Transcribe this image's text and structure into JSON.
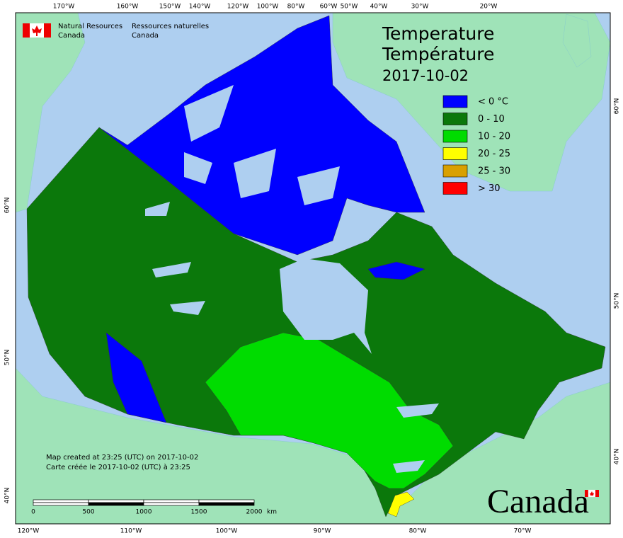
{
  "header": {
    "department_en": [
      "Natural Resources",
      "Canada"
    ],
    "department_fr": [
      "Ressources naturelles",
      "Canada"
    ]
  },
  "title": {
    "line1": "Temperature",
    "line2": "Température",
    "date": "2017-10-02"
  },
  "legend": [
    {
      "label": "< 0 °C",
      "color": "#0000ff"
    },
    {
      "label": "0 - 10",
      "color": "#0b780b"
    },
    {
      "label": "10 - 20",
      "color": "#00dc00"
    },
    {
      "label": "20 - 25",
      "color": "#ffff00"
    },
    {
      "label": "25 - 30",
      "color": "#d9a000"
    },
    {
      "label": "> 30",
      "color": "#ff0000"
    }
  ],
  "footer": {
    "created_en": "Map created at 23:25 (UTC) on 2017-10-02",
    "created_fr": "Carte créée le 2017-10-02 (UTC) à 23:25"
  },
  "scale_bar": {
    "labels": [
      "0",
      "500",
      "1000",
      "1500",
      "2000"
    ],
    "unit": "km"
  },
  "graticule": {
    "top": [
      "170°W",
      "160°W",
      "150°W",
      "140°W",
      "120°W",
      "100°W",
      "80°W",
      "60°W",
      "50°W",
      "40°W",
      "30°W",
      "20°W"
    ],
    "bottom": [
      "120°W",
      "110°W",
      "100°W",
      "90°W",
      "80°W",
      "70°W"
    ],
    "left": [
      "60°N",
      "50°N",
      "40°N"
    ],
    "right": [
      "60°N",
      "50°N",
      "40°N"
    ]
  },
  "wordmark": "Canada"
}
